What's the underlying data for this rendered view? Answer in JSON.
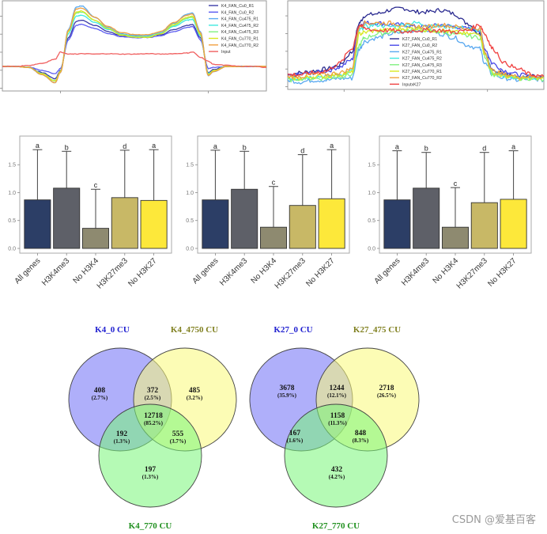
{
  "chart_data": [
    {
      "id": "k4_profile",
      "type": "line",
      "title": "",
      "xlabel": "",
      "ylabel": "",
      "x": [
        0,
        0.05,
        0.1,
        0.15,
        0.2,
        0.22,
        0.25,
        0.28,
        0.3,
        0.35,
        0.4,
        0.45,
        0.5,
        0.55,
        0.6,
        0.65,
        0.7,
        0.72,
        0.75,
        0.78,
        0.8,
        0.85,
        0.9,
        0.95,
        1.0
      ],
      "ylim": [
        -1.2,
        3.2
      ],
      "legend_position": "top-right",
      "series": [
        {
          "name": "K4_FAN_Cu0_R1",
          "color": "#3a3aa8",
          "values": [
            0,
            0,
            -0.05,
            -0.3,
            -0.6,
            -0.2,
            1.4,
            2.2,
            2.25,
            2.0,
            1.7,
            1.5,
            1.45,
            1.45,
            1.55,
            1.8,
            2.0,
            2.05,
            1.4,
            -0.3,
            -0.15,
            0,
            0,
            0,
            0
          ]
        },
        {
          "name": "K4_FAN_Cu0_R2",
          "color": "#5a5af0",
          "values": [
            0,
            0,
            -0.03,
            -0.2,
            -0.35,
            -0.1,
            1.3,
            2.0,
            2.05,
            1.85,
            1.6,
            1.45,
            1.4,
            1.4,
            1.5,
            1.7,
            1.9,
            1.95,
            1.3,
            -0.1,
            -0.05,
            0,
            0,
            0,
            0
          ]
        },
        {
          "name": "K4_FAN_Cu475_R1",
          "color": "#5aaaf0",
          "values": [
            0,
            0,
            -0.05,
            -0.4,
            -0.8,
            -0.3,
            1.8,
            2.9,
            2.95,
            2.4,
            1.9,
            1.6,
            1.5,
            1.5,
            1.65,
            2.1,
            2.55,
            2.6,
            1.7,
            -0.45,
            -0.25,
            0,
            0,
            0,
            0
          ]
        },
        {
          "name": "K4_FAN_Cu475_R2",
          "color": "#40e8e0",
          "values": [
            0,
            0,
            -0.05,
            -0.35,
            -0.7,
            -0.25,
            1.6,
            2.45,
            2.5,
            2.15,
            1.8,
            1.55,
            1.45,
            1.45,
            1.6,
            1.95,
            2.25,
            2.3,
            1.5,
            -0.35,
            -0.2,
            0,
            0,
            0,
            0
          ]
        },
        {
          "name": "K4_FAN_Cu475_R3",
          "color": "#80f080",
          "values": [
            0,
            0,
            -0.05,
            -0.35,
            -0.72,
            -0.25,
            1.7,
            2.6,
            2.65,
            2.25,
            1.85,
            1.55,
            1.45,
            1.45,
            1.6,
            2.0,
            2.35,
            2.4,
            1.55,
            -0.4,
            -0.2,
            0,
            0,
            0,
            0
          ]
        },
        {
          "name": "K4_FAN_Cu770_R1",
          "color": "#d8e820",
          "values": [
            0,
            0,
            -0.05,
            -0.35,
            -0.72,
            -0.25,
            1.72,
            2.65,
            2.7,
            2.25,
            1.85,
            1.52,
            1.42,
            1.42,
            1.58,
            2.05,
            2.4,
            2.45,
            1.58,
            -0.4,
            -0.2,
            0,
            0,
            0,
            0
          ]
        },
        {
          "name": "K4_FAN_Cu770_R2",
          "color": "#f0a040",
          "values": [
            0,
            0,
            -0.05,
            -0.4,
            -0.8,
            -0.3,
            1.75,
            2.8,
            2.85,
            2.4,
            1.95,
            1.65,
            1.55,
            1.55,
            1.7,
            2.15,
            2.5,
            2.55,
            1.65,
            -0.45,
            -0.25,
            0,
            0,
            0,
            0
          ]
        },
        {
          "name": "Input",
          "color": "#f06060",
          "values": [
            0,
            0,
            0.05,
            0.15,
            0.35,
            0.7,
            0.6,
            0.6,
            0.62,
            0.6,
            0.62,
            0.6,
            0.6,
            0.62,
            0.6,
            0.62,
            0.65,
            0.7,
            0.45,
            0.25,
            0.1,
            0.05,
            0,
            0,
            -0.05
          ]
        }
      ]
    },
    {
      "id": "k27_profile",
      "type": "line",
      "title": "",
      "xlabel": "",
      "ylabel": "",
      "x": [
        0,
        0.05,
        0.1,
        0.15,
        0.2,
        0.25,
        0.28,
        0.3,
        0.35,
        0.4,
        0.45,
        0.5,
        0.55,
        0.6,
        0.65,
        0.7,
        0.75,
        0.77,
        0.8,
        0.85,
        0.9,
        0.95,
        1.0
      ],
      "ylim": [
        -0.2,
        2.2
      ],
      "legend_position": "center",
      "series": [
        {
          "name": "K27_FAN_Cu0_R1",
          "color": "#2a2a90",
          "values": [
            0.2,
            0.25,
            0.3,
            0.35,
            0.45,
            0.8,
            1.6,
            1.8,
            1.85,
            1.95,
            2.0,
            1.9,
            1.9,
            1.95,
            1.85,
            1.6,
            1.3,
            0.8,
            0.3,
            0.25,
            0.1,
            0.15,
            0.1
          ]
        },
        {
          "name": "K27_FAN_Cu0_R2",
          "color": "#4848e8",
          "values": [
            0.15,
            0.2,
            0.25,
            0.3,
            0.4,
            0.6,
            1.55,
            1.6,
            1.6,
            1.55,
            1.55,
            1.5,
            1.5,
            1.55,
            1.5,
            1.45,
            1.4,
            0.9,
            0.5,
            0.3,
            0.2,
            0.15,
            0.1
          ]
        },
        {
          "name": "K27_FAN_Cu475_R1",
          "color": "#58a8f0",
          "values": [
            0.05,
            0.0,
            0.05,
            0.05,
            0.1,
            0.1,
            0.9,
            1.1,
            1.2,
            1.3,
            1.35,
            1.4,
            1.4,
            1.3,
            1.2,
            1.0,
            0.9,
            0.5,
            0.2,
            0.1,
            0.05,
            0.1,
            0.05
          ]
        },
        {
          "name": "K27_FAN_Cu475_R2",
          "color": "#40e8e0",
          "values": [
            0.1,
            0.1,
            0.15,
            0.15,
            0.2,
            0.3,
            1.4,
            1.5,
            1.55,
            1.5,
            1.55,
            1.6,
            1.55,
            1.5,
            1.5,
            1.45,
            1.4,
            0.8,
            0.25,
            0.15,
            0.1,
            0.1,
            0.1
          ]
        },
        {
          "name": "K27_FAN_Cu475_R3",
          "color": "#80f080",
          "values": [
            0.05,
            0.1,
            0.1,
            0.1,
            0.15,
            0.2,
            1.0,
            1.2,
            1.3,
            1.35,
            1.4,
            1.45,
            1.4,
            1.35,
            1.3,
            1.25,
            1.2,
            0.7,
            0.2,
            0.15,
            0.1,
            0.1,
            0.05
          ]
        },
        {
          "name": "K27_FAN_Cu770_R1",
          "color": "#d8e820",
          "values": [
            0.1,
            0.1,
            0.15,
            0.15,
            0.2,
            0.25,
            1.3,
            1.35,
            1.4,
            1.4,
            1.45,
            1.45,
            1.4,
            1.4,
            1.35,
            1.3,
            1.3,
            0.75,
            0.25,
            0.15,
            0.1,
            0.1,
            0.1
          ]
        },
        {
          "name": "K27_FAN_Cu770_R2",
          "color": "#f0a040",
          "values": [
            0.15,
            0.15,
            0.2,
            0.2,
            0.25,
            0.35,
            1.5,
            1.6,
            1.6,
            1.6,
            1.55,
            1.5,
            1.5,
            1.55,
            1.5,
            1.45,
            1.45,
            0.8,
            0.3,
            0.2,
            0.15,
            0.15,
            0.15
          ]
        },
        {
          "name": "InputxK27",
          "color": "#f04040",
          "values": [
            0.2,
            0.2,
            0.25,
            0.3,
            0.5,
            0.9,
            1.55,
            1.45,
            1.4,
            1.4,
            1.35,
            1.4,
            1.4,
            1.4,
            1.35,
            1.4,
            1.55,
            1.3,
            0.9,
            0.5,
            0.35,
            0.2,
            0.15
          ]
        }
      ]
    },
    {
      "id": "bar_1",
      "type": "bar",
      "title": "",
      "xlabel": "",
      "ylabel": "",
      "ylim": [
        0,
        1.9
      ],
      "yticks": [
        "0.0",
        "0.5",
        "1.0",
        "1.5"
      ],
      "categories": [
        "All genes",
        "H3K4me3",
        "No H3K4",
        "H3K27me3",
        "No H3K27"
      ],
      "values": [
        0.87,
        1.08,
        0.36,
        0.91,
        0.86
      ],
      "error_upper": [
        1.77,
        1.74,
        1.06,
        1.76,
        1.77
      ],
      "significance": [
        "a",
        "b",
        "c",
        "d",
        "a"
      ],
      "colors": [
        "#2c3e66",
        "#5e6068",
        "#8e8a70",
        "#c8b866",
        "#fde83a"
      ]
    },
    {
      "id": "bar_2",
      "type": "bar",
      "title": "",
      "xlabel": "",
      "ylabel": "",
      "ylim": [
        0,
        1.9
      ],
      "yticks": [
        "0.0",
        "0.5",
        "1.0",
        "1.5"
      ],
      "categories": [
        "All genes",
        "H3K4me3",
        "No H3K4",
        "H3K27me3",
        "No H3K27"
      ],
      "values": [
        0.87,
        1.06,
        0.38,
        0.77,
        0.89
      ],
      "error_upper": [
        1.76,
        1.74,
        1.11,
        1.68,
        1.77
      ],
      "significance": [
        "a",
        "b",
        "c",
        "d",
        "a"
      ],
      "colors": [
        "#2c3e66",
        "#5e6068",
        "#8e8a70",
        "#c8b866",
        "#fde83a"
      ]
    },
    {
      "id": "bar_3",
      "type": "bar",
      "title": "",
      "xlabel": "",
      "ylabel": "",
      "ylim": [
        0,
        1.9
      ],
      "yticks": [
        "0.0",
        "0.5",
        "1.0",
        "1.5"
      ],
      "categories": [
        "All genes",
        "H3K4me3",
        "No H3K4",
        "H3K27me3",
        "No H3K27"
      ],
      "values": [
        0.87,
        1.08,
        0.38,
        0.82,
        0.88
      ],
      "error_upper": [
        1.75,
        1.72,
        1.09,
        1.72,
        1.75
      ],
      "significance": [
        "a",
        "b",
        "c",
        "d",
        "a"
      ],
      "colors": [
        "#2c3e66",
        "#5e6068",
        "#8e8a70",
        "#c8b866",
        "#fde83a"
      ]
    },
    {
      "id": "venn_k4",
      "type": "venn",
      "sets": [
        {
          "name": "K4_0 CU",
          "color": "#6e6ef5",
          "label_color": "#2020d0"
        },
        {
          "name": "K4_4750 CU",
          "color": "#fafa78",
          "label_color": "#808020"
        },
        {
          "name": "K4_770 CU",
          "color": "#78f578",
          "label_color": "#20901f"
        }
      ],
      "regions": {
        "a_only": {
          "count": "408",
          "pct": "(2.7%)"
        },
        "ab": {
          "count": "372",
          "pct": "(2.5%)"
        },
        "b_only": {
          "count": "485",
          "pct": "(3.2%)"
        },
        "abc": {
          "count": "12718",
          "pct": "(85.2%)"
        },
        "ac": {
          "count": "192",
          "pct": "(1.3%)"
        },
        "bc": {
          "count": "555",
          "pct": "(3.7%)"
        },
        "c_only": {
          "count": "197",
          "pct": "(1.3%)"
        }
      }
    },
    {
      "id": "venn_k27",
      "type": "venn",
      "sets": [
        {
          "name": "K27_0 CU",
          "color": "#6e6ef5",
          "label_color": "#2020d0"
        },
        {
          "name": "K27_475 CU",
          "color": "#fafa78",
          "label_color": "#808020"
        },
        {
          "name": "K27_770 CU",
          "color": "#78f578",
          "label_color": "#20901f"
        }
      ],
      "regions": {
        "a_only": {
          "count": "3678",
          "pct": "(35.9%)"
        },
        "ab": {
          "count": "1244",
          "pct": "(12.1%)"
        },
        "b_only": {
          "count": "2718",
          "pct": "(26.5%)"
        },
        "abc": {
          "count": "1158",
          "pct": "(11.3%)"
        },
        "ac": {
          "count": "167",
          "pct": "(1.6%)"
        },
        "bc": {
          "count": "848",
          "pct": "(8.3%)"
        },
        "c_only": {
          "count": "432",
          "pct": "(4.2%)"
        }
      }
    }
  ],
  "watermark": "CSDN @爱基百客"
}
